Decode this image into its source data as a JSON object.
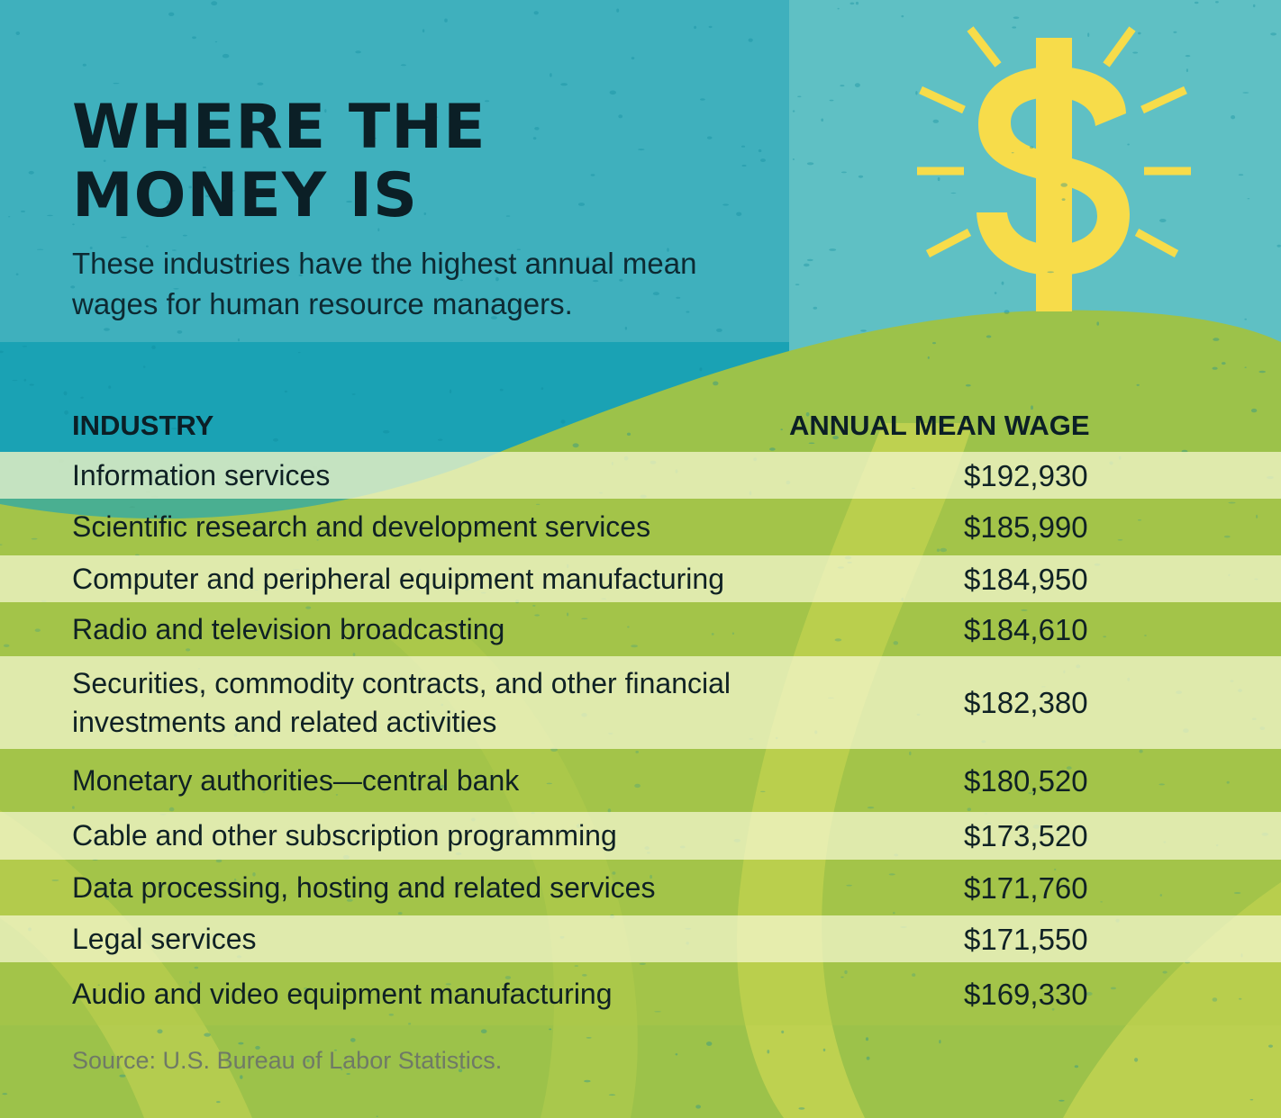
{
  "title_lines": [
    "WHERE THE",
    "MONEY IS"
  ],
  "subtitle": "These industries have the highest annual mean wages for human resource managers.",
  "illustration": "dollar-sign-on-hill",
  "colors": {
    "sky": "#1aa2b4",
    "sky_panel": "#5fc0c4",
    "hill": "#9cc24a",
    "hill_light": "#c9d653",
    "dollar": "#f7dc4a",
    "text": "#0b1f26"
  },
  "chart_data": {
    "type": "table",
    "columns": [
      "INDUSTRY",
      "ANNUAL MEAN WAGE"
    ],
    "rows": [
      {
        "industry": "Information services",
        "wage": "$192,930",
        "value": 192930
      },
      {
        "industry": "Scientific research and development services",
        "wage": "$185,990",
        "value": 185990
      },
      {
        "industry": "Computer and peripheral equipment manufacturing",
        "wage": "$184,950",
        "value": 184950
      },
      {
        "industry": "Radio and television broadcasting",
        "wage": "$184,610",
        "value": 184610
      },
      {
        "industry": "Securities, commodity contracts, and other financial investments and related activities",
        "wage": "$182,380",
        "value": 182380
      },
      {
        "industry": "Monetary authorities—central bank",
        "wage": "$180,520",
        "value": 180520
      },
      {
        "industry": "Cable and other subscription programming",
        "wage": "$173,520",
        "value": 173520
      },
      {
        "industry": "Data processing, hosting and related services",
        "wage": "$171,760",
        "value": 171760
      },
      {
        "industry": "Legal services",
        "wage": "$171,550",
        "value": 171550
      },
      {
        "industry": "Audio and video equipment manufacturing",
        "wage": "$169,330",
        "value": 169330
      }
    ],
    "source": "Source: U.S. Bureau of Labor Statistics."
  }
}
